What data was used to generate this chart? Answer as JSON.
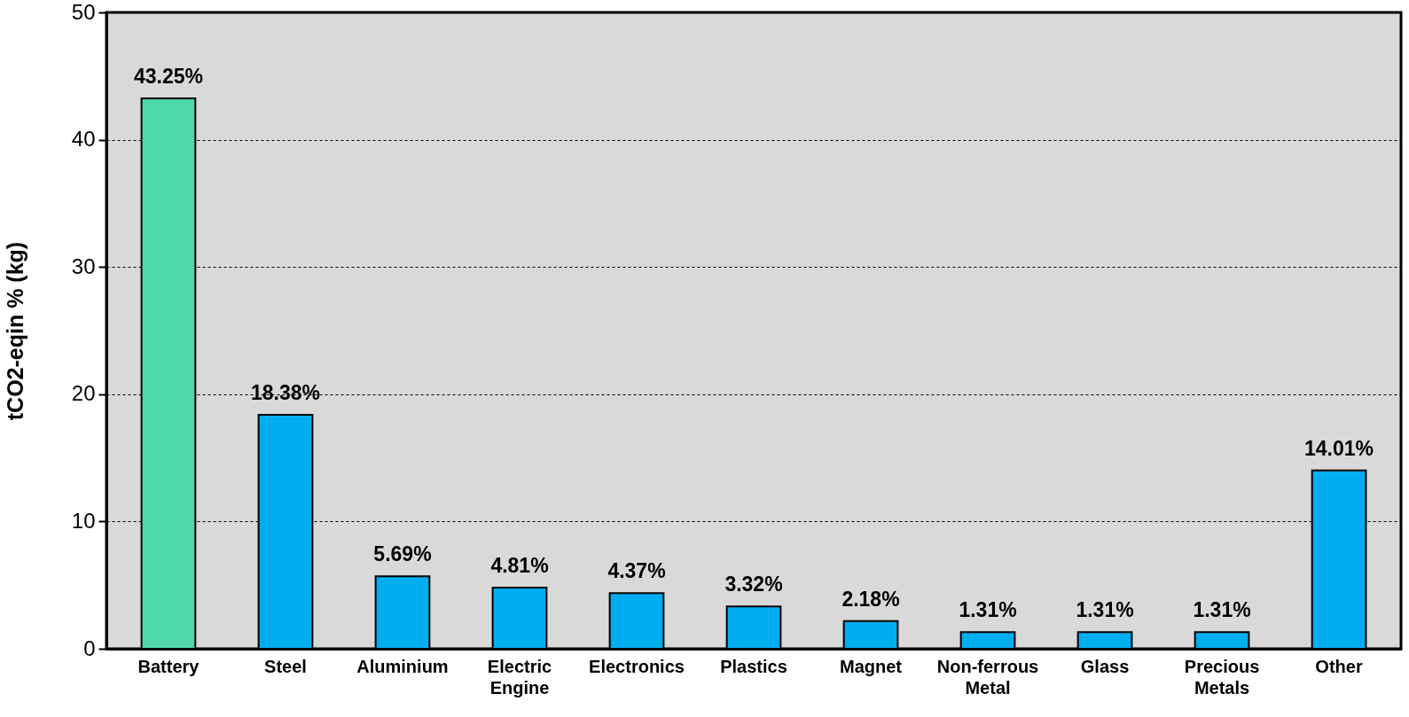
{
  "chart_data": {
    "type": "bar",
    "ylabel": "tCO2-eqin % (kg)",
    "categories": [
      "Battery",
      "Steel",
      "Aluminium",
      "Electric Engine",
      "Electronics",
      "Plastics",
      "Magnet",
      "Non-ferrous Metal",
      "Glass",
      "Precious Metals",
      "Other"
    ],
    "values": [
      43.25,
      18.38,
      5.69,
      4.81,
      4.37,
      3.32,
      2.18,
      1.31,
      1.31,
      1.31,
      14.01
    ],
    "value_labels": [
      "43.25%",
      "18.38%",
      "5.69%",
      "4.81%",
      "4.37%",
      "3.32%",
      "2.18%",
      "1.31%",
      "1.31%",
      "1.31%",
      "14.01%"
    ],
    "colors": [
      "#4fd9aa",
      "#00aeef",
      "#00aeef",
      "#00aeef",
      "#00aeef",
      "#00aeef",
      "#00aeef",
      "#00aeef",
      "#00aeef",
      "#00aeef",
      "#00aeef"
    ],
    "ylim": [
      0,
      50
    ],
    "yticks": [
      0,
      10,
      20,
      30,
      40,
      50
    ],
    "grid": "y"
  }
}
